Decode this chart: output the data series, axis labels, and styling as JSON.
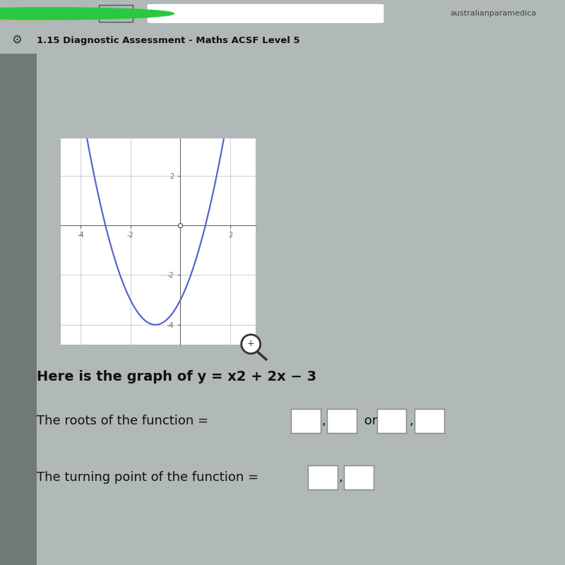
{
  "fig_bg": "#b0b8b8",
  "browser_bar_bg": "#d8d8d8",
  "tab_bar_bg": "#c8c8c8",
  "header_bg": "#2ab8c8",
  "content_bg": "#f5f5f5",
  "graph_bg": "#ffffff",
  "graph_border": "#cccccc",
  "curve_color": "#5566cc",
  "curve_lw": 1.6,
  "axis_color": "#666666",
  "grid_color": "#bbbbbb",
  "x_ticks": [
    -4,
    -2,
    0,
    2
  ],
  "y_ticks": [
    -4,
    -2,
    0,
    2
  ],
  "x_range": [
    -4.8,
    3.0
  ],
  "y_range": [
    -4.8,
    3.5
  ],
  "header_text": "1.15 Diagnostic Assessment - Maths ACSF Level 5",
  "graph_title": "Here is the graph of y = x2 + 2x − 3",
  "roots_label": "The roots of the function = ",
  "turning_label": "The turning point of the function = ",
  "or_text": "or",
  "title_fontsize": 14,
  "body_fontsize": 13,
  "header_fontsize": 11,
  "traffic_red": "#ff5f57",
  "traffic_yellow": "#ffbd2e",
  "traffic_green": "#28c940",
  "url_text": "australianparamedica",
  "text_color": "#111111",
  "header_text_color": "#111111",
  "box_color": "#ffffff",
  "box_edge": "#888888"
}
